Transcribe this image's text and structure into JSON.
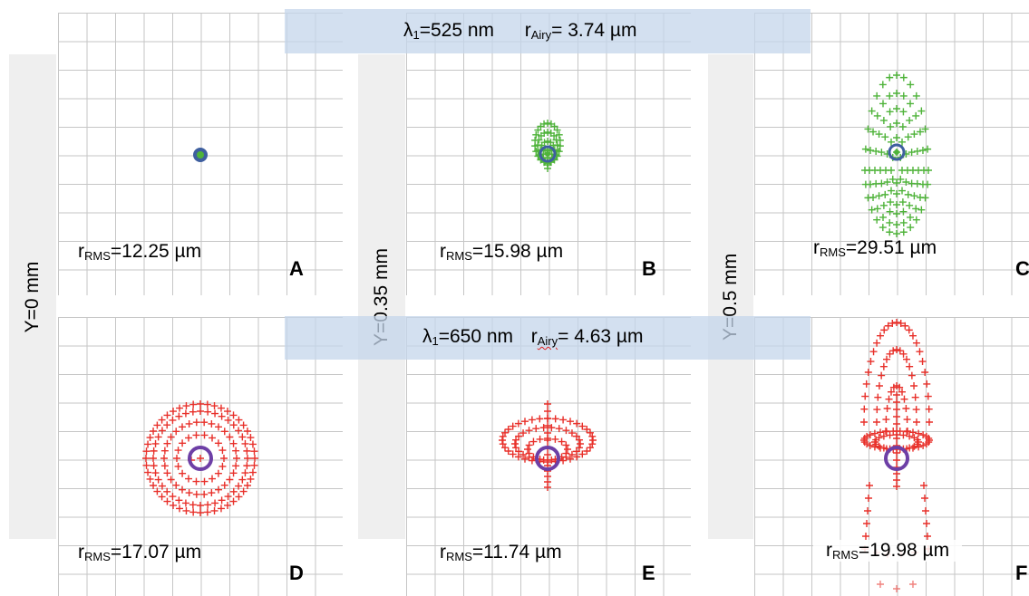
{
  "row_labels": [
    "Y=0 mm",
    "Y=0.35 mm",
    "Y=0.5 mm"
  ],
  "banners": [
    {
      "lambda_symbol": "λ",
      "lambda_sub": "1",
      "lambda_value": "=525 nm",
      "r_symbol": "r",
      "r_sub": "Airy",
      "r_value": "= 3.74 µm"
    },
    {
      "lambda_symbol": "λ",
      "lambda_sub": "1",
      "lambda_value": "=650 nm",
      "r_symbol": "r",
      "r_sub": "Airy",
      "r_value": "= 4.63 µm"
    }
  ],
  "panels": [
    {
      "letter": "A",
      "rms_symbol": "r",
      "rms_sub": "RMS",
      "rms_value": "=12.25 µm"
    },
    {
      "letter": "B",
      "rms_symbol": "r",
      "rms_sub": "RMS",
      "rms_value": "=15.98 µm"
    },
    {
      "letter": "C",
      "rms_symbol": "r",
      "rms_sub": "RMS",
      "rms_value": "=29.51 µm"
    },
    {
      "letter": "D",
      "rms_symbol": "r",
      "rms_sub": "RMS",
      "rms_value": "=17.07 µm"
    },
    {
      "letter": "E",
      "rms_symbol": "r",
      "rms_sub": "RMS",
      "rms_value": "=11.74 µm"
    },
    {
      "letter": "F",
      "rms_symbol": "r",
      "rms_sub": "RMS",
      "rms_value": "=19.98 µm"
    }
  ],
  "colors": {
    "green_spot": "#4fb33a",
    "red_spot": "#e8302a",
    "airy_circle_green_row": "#3e5f9f",
    "airy_circle_red_row": "#6d3fa6",
    "grid": "#c6c6c6",
    "banner": "#c4d6eb"
  }
}
